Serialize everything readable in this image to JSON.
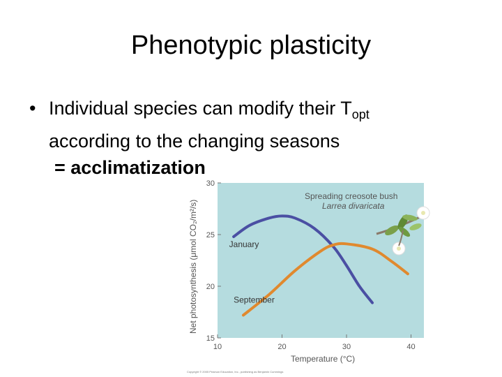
{
  "slide": {
    "title": "Phenotypic plasticity",
    "bullet_marker": "•",
    "bullet_text_1": "Individual species can modify their T",
    "bullet_sub": "opt",
    "bullet_text_2": "according to the changing seasons",
    "bullet_text_3": "= acclimatization"
  },
  "chart_data": {
    "type": "line",
    "title": "",
    "annotation_title": "Spreading creosote bush",
    "annotation_species": "Larrea divaricata",
    "xlabel": "Temperature (°C)",
    "ylabel": "Net photosynthesis (μmol CO₂/m²/s)",
    "xlim": [
      10,
      42
    ],
    "ylim": [
      15,
      30
    ],
    "xticks": [
      10,
      20,
      30,
      40
    ],
    "yticks": [
      15,
      20,
      25,
      30
    ],
    "grid": false,
    "background": "#b5dcdf",
    "series": [
      {
        "name": "January",
        "color": "#4a4fa3",
        "x": [
          12.5,
          15,
          18,
          20,
          22,
          25,
          28,
          30,
          32,
          34
        ],
        "y": [
          24.8,
          25.9,
          26.6,
          26.8,
          26.6,
          25.6,
          23.8,
          22.0,
          20.0,
          18.4
        ]
      },
      {
        "name": "September",
        "color": "#e0892e",
        "x": [
          14,
          18,
          22,
          26,
          28,
          30,
          34,
          37,
          39.5
        ],
        "y": [
          17.2,
          19.2,
          21.5,
          23.4,
          24.0,
          24.1,
          23.6,
          22.4,
          21.2
        ]
      }
    ],
    "copyright": "Copyright © 2005 Pearson Education, Inc., publishing as Benjamin Cummings"
  }
}
